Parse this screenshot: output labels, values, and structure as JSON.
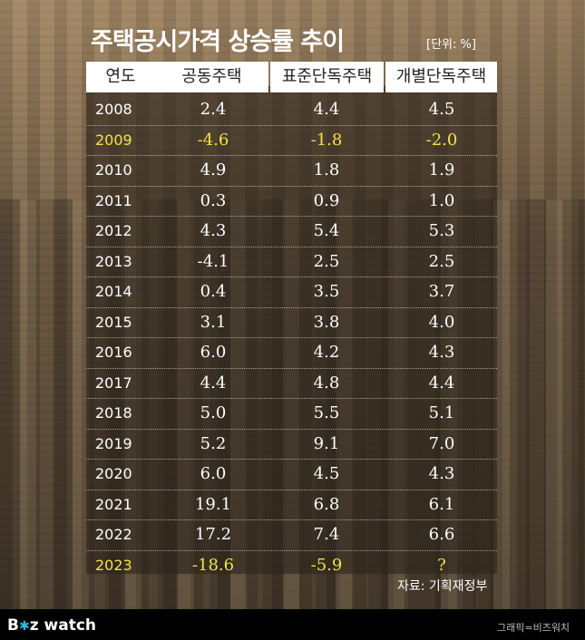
{
  "chart_data": {
    "type": "table",
    "title": "주택공시가격 상승률 추이",
    "unit": "[단위: %]",
    "columns": [
      "연도",
      "공동주택",
      "표준단독주택",
      "개별단독주택"
    ],
    "rows": [
      {
        "year": "2008",
        "values": [
          "2.4",
          "4.4",
          "4.5"
        ],
        "highlight": false
      },
      {
        "year": "2009",
        "values": [
          "-4.6",
          "-1.8",
          "-2.0"
        ],
        "highlight": true
      },
      {
        "year": "2010",
        "values": [
          "4.9",
          "1.8",
          "1.9"
        ],
        "highlight": false
      },
      {
        "year": "2011",
        "values": [
          "0.3",
          "0.9",
          "1.0"
        ],
        "highlight": false
      },
      {
        "year": "2012",
        "values": [
          "4.3",
          "5.4",
          "5.3"
        ],
        "highlight": false
      },
      {
        "year": "2013",
        "values": [
          "-4.1",
          "2.5",
          "2.5"
        ],
        "highlight": false
      },
      {
        "year": "2014",
        "values": [
          "0.4",
          "3.5",
          "3.7"
        ],
        "highlight": false
      },
      {
        "year": "2015",
        "values": [
          "3.1",
          "3.8",
          "4.0"
        ],
        "highlight": false
      },
      {
        "year": "2016",
        "values": [
          "6.0",
          "4.2",
          "4.3"
        ],
        "highlight": false
      },
      {
        "year": "2017",
        "values": [
          "4.4",
          "4.8",
          "4.4"
        ],
        "highlight": false
      },
      {
        "year": "2018",
        "values": [
          "5.0",
          "5.5",
          "5.1"
        ],
        "highlight": false
      },
      {
        "year": "2019",
        "values": [
          "5.2",
          "9.1",
          "7.0"
        ],
        "highlight": false
      },
      {
        "year": "2020",
        "values": [
          "6.0",
          "4.5",
          "4.3"
        ],
        "highlight": false
      },
      {
        "year": "2021",
        "values": [
          "19.1",
          "6.8",
          "6.1"
        ],
        "highlight": false
      },
      {
        "year": "2022",
        "values": [
          "17.2",
          "7.4",
          "6.6"
        ],
        "highlight": false
      },
      {
        "year": "2023",
        "values": [
          "-18.6",
          "-5.9",
          "?"
        ],
        "highlight": true
      }
    ],
    "highlight_color": "#f2e24a",
    "source": "자료: 기획재정부"
  },
  "footer": {
    "logo_b": "B",
    "logo_star": "✱",
    "logo_z": "z",
    "logo_watch": " watch",
    "credit": "그래픽=비즈워치"
  }
}
